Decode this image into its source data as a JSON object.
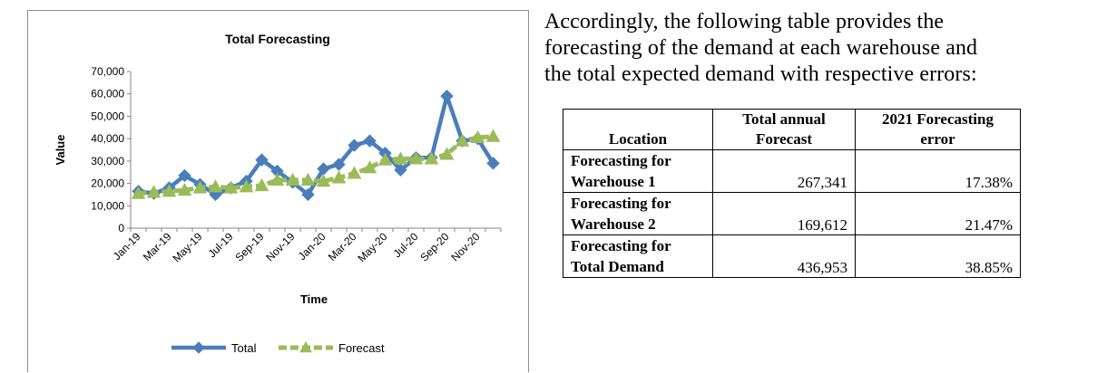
{
  "chart_data": {
    "type": "line",
    "title": "Total Forecasting",
    "xlabel": "Time",
    "ylabel": "Value",
    "ylim": [
      0,
      70000
    ],
    "yticks": [
      0,
      10000,
      20000,
      30000,
      40000,
      50000,
      60000,
      70000
    ],
    "ytick_labels": [
      "0",
      "10,000",
      "20,000",
      "30,000",
      "40,000",
      "50,000",
      "60,000",
      "70,000"
    ],
    "categories": [
      "Jan-19",
      "Feb-19",
      "Mar-19",
      "Apr-19",
      "May-19",
      "Jun-19",
      "Jul-19",
      "Aug-19",
      "Sep-19",
      "Oct-19",
      "Nov-19",
      "Dec-19",
      "Jan-20",
      "Feb-20",
      "Mar-20",
      "Apr-20",
      "May-20",
      "Jun-20",
      "Jul-20",
      "Aug-20",
      "Sep-20",
      "Oct-20",
      "Nov-20",
      "Dec-20"
    ],
    "xtick_labels": [
      "Jan-19",
      "Mar-19",
      "May-19",
      "Jul-19",
      "Sep-19",
      "Nov-19",
      "Jan-20",
      "Mar-20",
      "May-20",
      "Jul-20",
      "Sep-20",
      "Nov-20"
    ],
    "legend_position": "bottom",
    "series": [
      {
        "name": "Total",
        "color": "#4a7ebb",
        "marker": "diamond",
        "values": [
          16500,
          15500,
          18000,
          23500,
          19500,
          15000,
          18000,
          21000,
          30500,
          25500,
          20500,
          15000,
          26500,
          28500,
          37000,
          39000,
          33500,
          26000,
          31500,
          31500,
          59000,
          39000,
          40000,
          29000
        ]
      },
      {
        "name": "Forecast",
        "color": "#9bbb59",
        "marker": "triangle",
        "values": [
          15500,
          16000,
          16500,
          17000,
          18000,
          18500,
          18000,
          18500,
          19000,
          21500,
          21500,
          21500,
          21000,
          22500,
          24500,
          27000,
          30500,
          31000,
          31000,
          31000,
          33000,
          39000,
          40500,
          41000
        ]
      }
    ]
  },
  "text": {
    "intro_line1": "Accordingly, the following table provides the",
    "intro_line2": "forecasting of the demand at each warehouse and",
    "intro_line3": "the total expected demand with respective errors:"
  },
  "table": {
    "headers": [
      "Location",
      "Total annual",
      "Forecast",
      "2021 Forecasting",
      "error"
    ],
    "rows": [
      {
        "loc1": "Forecasting for",
        "loc2": "Warehouse 1",
        "forecast": "267,341",
        "error": "17.38%"
      },
      {
        "loc1": "Forecasting for",
        "loc2": "Warehouse 2",
        "forecast": "169,612",
        "error": "21.47%"
      },
      {
        "loc1": "Forecasting for",
        "loc2": "Total Demand",
        "forecast": "436,953",
        "error": "38.85%"
      }
    ]
  }
}
